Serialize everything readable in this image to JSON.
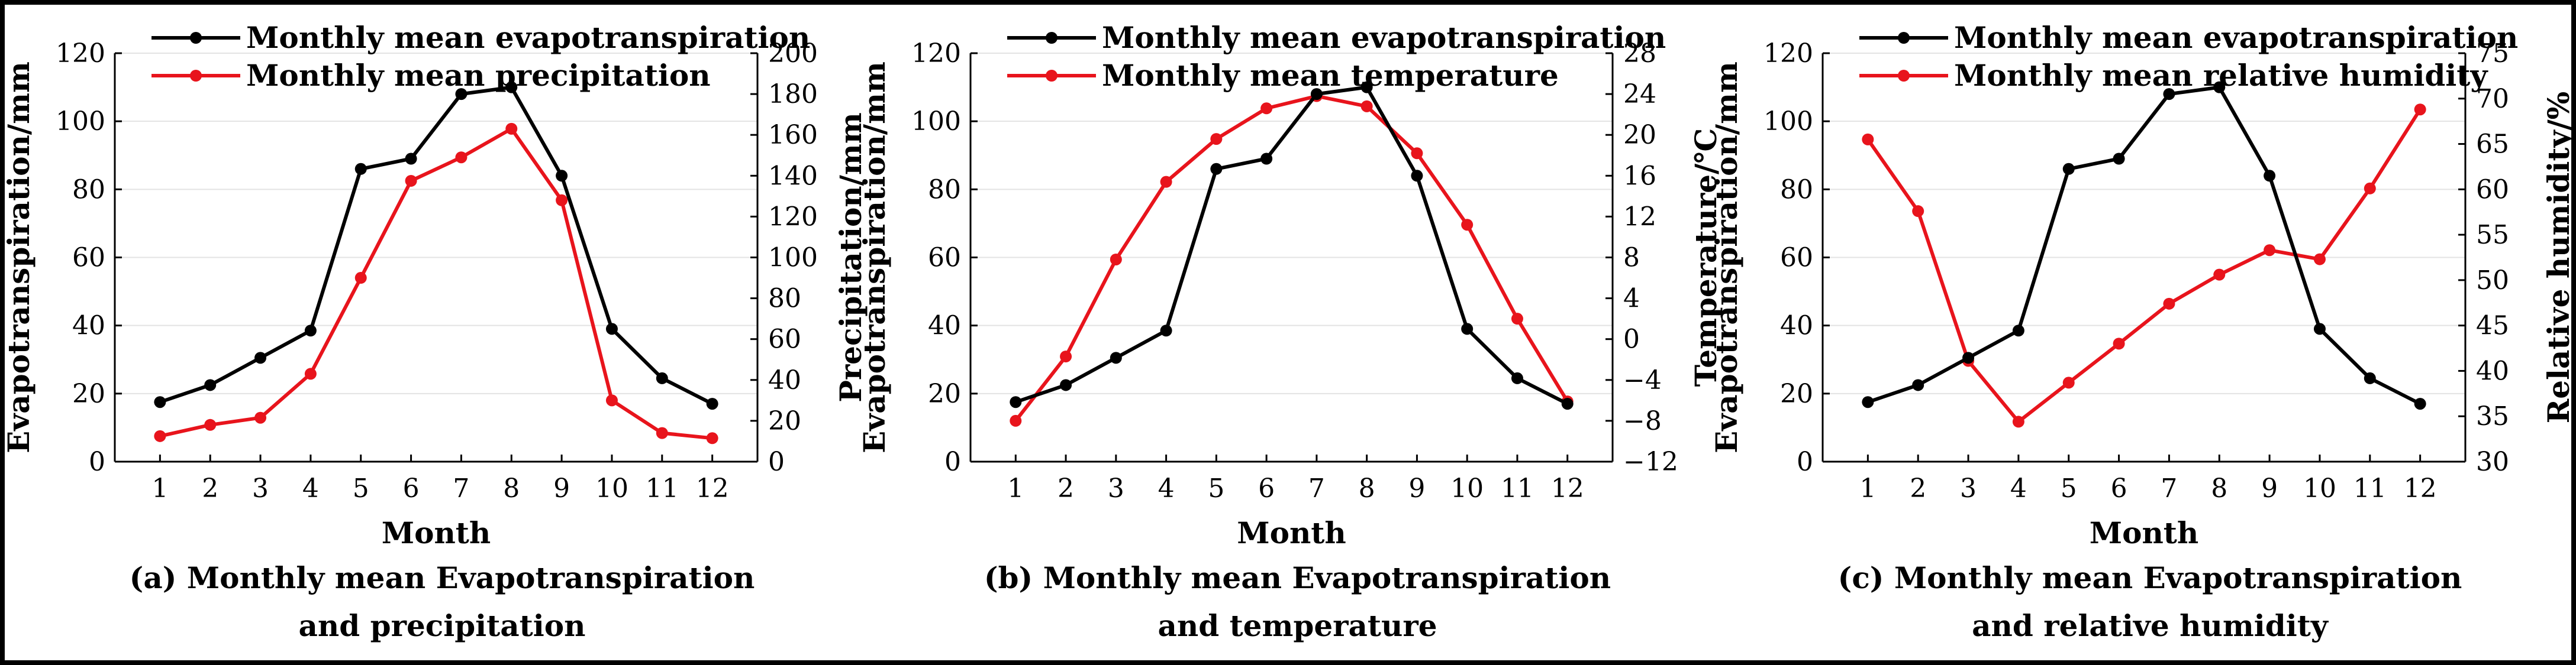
{
  "chart_data": [
    {
      "type": "line",
      "panel": "a",
      "x": [
        1,
        2,
        3,
        4,
        5,
        6,
        7,
        8,
        9,
        10,
        11,
        12
      ],
      "xlabel": "Month",
      "ylabel_left": "Evapotranspiration/mm",
      "ylabel_right": "Precipitation/mm",
      "ylim_left": [
        0,
        120
      ],
      "yticks_left": [
        0,
        20,
        40,
        60,
        80,
        100,
        120
      ],
      "ylim_right": [
        0,
        200
      ],
      "yticks_right": [
        0,
        20,
        40,
        60,
        80,
        100,
        120,
        140,
        160,
        180,
        200
      ],
      "caption_line1": "(a) Monthly mean Evapotranspiration",
      "caption_line2": "and precipitation",
      "series": [
        {
          "name": "Monthly mean evapotranspiration",
          "axis": "left",
          "color": "#000000",
          "values": [
            17.5,
            22.5,
            30.5,
            38.5,
            86,
            89,
            108,
            110,
            84,
            39,
            24.5,
            17
          ]
        },
        {
          "name": "Monthly mean precipitation",
          "axis": "right",
          "color": "#e8141c",
          "values": [
            12.5,
            18,
            21.5,
            43,
            90,
            137.5,
            149,
            163,
            128,
            30,
            14,
            11.5
          ]
        }
      ]
    },
    {
      "type": "line",
      "panel": "b",
      "x": [
        1,
        2,
        3,
        4,
        5,
        6,
        7,
        8,
        9,
        10,
        11,
        12
      ],
      "xlabel": "Month",
      "ylabel_left": "Evapotranspiration/mm",
      "ylabel_right": "Temperature/℃",
      "ylim_left": [
        0,
        120
      ],
      "yticks_left": [
        0,
        20,
        40,
        60,
        80,
        100,
        120
      ],
      "ylim_right": [
        -12,
        28
      ],
      "yticks_right": [
        -12,
        -8,
        -4,
        0,
        4,
        8,
        12,
        16,
        20,
        24,
        28
      ],
      "caption_line1": "(b) Monthly mean Evapotranspiration",
      "caption_line2": "and temperature",
      "series": [
        {
          "name": "Monthly mean evapotranspiration",
          "axis": "left",
          "color": "#000000",
          "values": [
            17.5,
            22.5,
            30.5,
            38.5,
            86,
            89,
            108,
            110,
            84,
            39,
            24.5,
            17
          ]
        },
        {
          "name": "Monthly mean temperature",
          "axis": "right",
          "color": "#e8141c",
          "values": [
            -8,
            -1.7,
            7.8,
            15.4,
            19.6,
            22.6,
            23.8,
            22.8,
            18.2,
            11.2,
            2,
            -6.1
          ]
        }
      ]
    },
    {
      "type": "line",
      "panel": "c",
      "x": [
        1,
        2,
        3,
        4,
        5,
        6,
        7,
        8,
        9,
        10,
        11,
        12
      ],
      "xlabel": "Month",
      "ylabel_left": "Evapotranspiration/mm",
      "ylabel_right": "Relative humidity/%",
      "ylim_left": [
        0,
        120
      ],
      "yticks_left": [
        0,
        20,
        40,
        60,
        80,
        100,
        120
      ],
      "ylim_right": [
        30,
        75
      ],
      "yticks_right": [
        30,
        35,
        40,
        45,
        50,
        55,
        60,
        65,
        70,
        75
      ],
      "caption_line1": "(c) Monthly mean Evapotranspiration",
      "caption_line2": "and relative humidity",
      "series": [
        {
          "name": "Monthly mean evapotranspiration",
          "axis": "left",
          "color": "#000000",
          "values": [
            17.5,
            22.5,
            30.5,
            38.5,
            86,
            89,
            108,
            110,
            84,
            39,
            24.5,
            17
          ]
        },
        {
          "name": "Monthly mean relative humidity",
          "axis": "right",
          "color": "#e8141c",
          "values": [
            65.5,
            57.6,
            41.1,
            34.4,
            38.7,
            43,
            47.4,
            50.6,
            53.3,
            52.3,
            60.1,
            68.8
          ]
        }
      ]
    }
  ]
}
